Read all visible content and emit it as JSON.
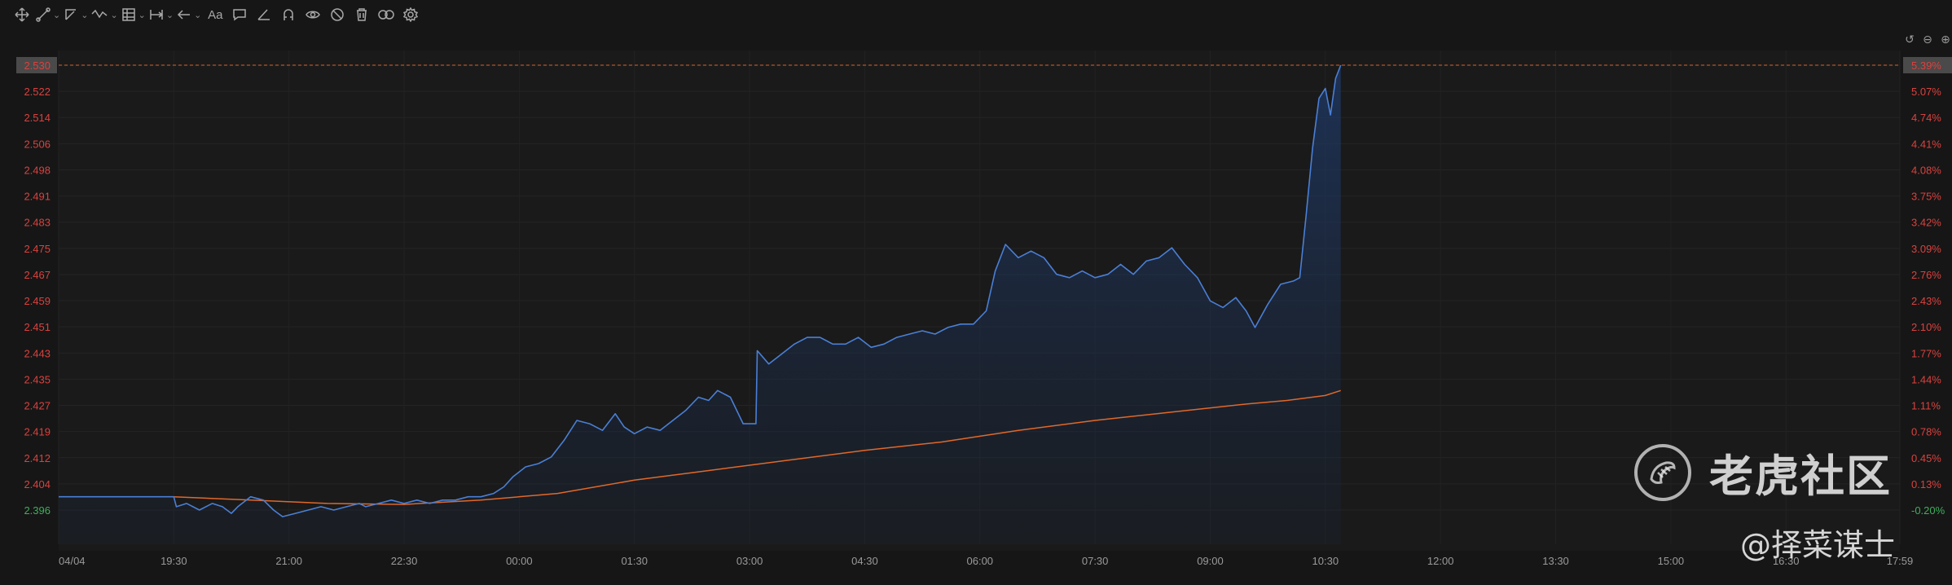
{
  "toolbar": {
    "tools": [
      {
        "name": "crosshair-tool",
        "icon": "move-icon",
        "caret": false
      },
      {
        "name": "line-tool",
        "icon": "line-icon",
        "caret": true
      },
      {
        "name": "ray-tool",
        "icon": "ray-icon",
        "caret": true
      },
      {
        "name": "wave-tool",
        "icon": "wave-icon",
        "caret": true
      },
      {
        "name": "measure-tool",
        "icon": "measure-icon",
        "caret": true
      },
      {
        "name": "range-tool",
        "icon": "range-icon",
        "caret": true
      },
      {
        "name": "arrow-tool",
        "icon": "arrow-left-icon",
        "caret": true
      },
      {
        "name": "text-tool",
        "icon": "text-icon",
        "caret": false
      },
      {
        "name": "note-tool",
        "icon": "comment-icon",
        "caret": false
      },
      {
        "name": "angle-tool",
        "icon": "angle-icon",
        "caret": false
      },
      {
        "name": "magnet-tool",
        "icon": "magnet-icon",
        "caret": false
      },
      {
        "name": "lock-tool",
        "icon": "eye-icon",
        "caret": false
      },
      {
        "name": "hide-tool",
        "icon": "hide-icon",
        "caret": false
      },
      {
        "name": "delete-tool",
        "icon": "trash-icon",
        "caret": false
      },
      {
        "name": "link-tool",
        "icon": "link-icon",
        "caret": false
      },
      {
        "name": "settings-tool",
        "icon": "gear-icon",
        "caret": false
      }
    ],
    "text_label": "Aa"
  },
  "corner_icons": [
    "undo-icon",
    "minus-icon",
    "plus-icon"
  ],
  "chart_data": {
    "type": "line",
    "title": "",
    "y_ticks": [
      "2.530",
      "2.522",
      "2.514",
      "2.506",
      "2.498",
      "2.491",
      "2.483",
      "2.475",
      "2.467",
      "2.459",
      "2.451",
      "2.443",
      "2.435",
      "2.427",
      "2.419",
      "2.412",
      "2.404",
      "2.396"
    ],
    "y_pct_ticks": [
      "5.39%",
      "5.07%",
      "4.74%",
      "4.41%",
      "4.08%",
      "3.75%",
      "3.42%",
      "3.09%",
      "2.76%",
      "2.43%",
      "2.10%",
      "1.77%",
      "1.44%",
      "1.11%",
      "0.78%",
      "0.45%",
      "0.13%",
      "-0.20%"
    ],
    "x_ticks": [
      "04/04",
      "19:30",
      "21:00",
      "22:30",
      "00:00",
      "01:30",
      "03:00",
      "04:30",
      "06:00",
      "07:30",
      "09:00",
      "10:30",
      "12:00",
      "13:30",
      "15:00",
      "16:30",
      "17:59"
    ],
    "ylim": [
      2.3935,
      2.5355
    ],
    "last_price": "2.530",
    "last_pct": "5.39%",
    "prev_close": 2.4009,
    "series": [
      {
        "type": "price",
        "color": "#4a7fd6",
        "points": [
          [
            "18:00",
            2.4
          ],
          [
            "19:30",
            2.4
          ],
          [
            "19:32",
            2.397
          ],
          [
            "19:40",
            2.398
          ],
          [
            "19:50",
            2.396
          ],
          [
            "20:00",
            2.398
          ],
          [
            "20:08",
            2.397
          ],
          [
            "20:15",
            2.395
          ],
          [
            "20:20",
            2.397
          ],
          [
            "20:30",
            2.4
          ],
          [
            "20:40",
            2.399
          ],
          [
            "20:48",
            2.396
          ],
          [
            "20:55",
            2.394
          ],
          [
            "21:05",
            2.395
          ],
          [
            "21:15",
            2.396
          ],
          [
            "21:25",
            2.397
          ],
          [
            "21:35",
            2.396
          ],
          [
            "21:45",
            2.397
          ],
          [
            "21:55",
            2.398
          ],
          [
            "22:00",
            2.397
          ],
          [
            "22:10",
            2.398
          ],
          [
            "22:20",
            2.399
          ],
          [
            "22:30",
            2.398
          ],
          [
            "22:40",
            2.399
          ],
          [
            "22:50",
            2.398
          ],
          [
            "23:00",
            2.399
          ],
          [
            "23:10",
            2.399
          ],
          [
            "23:20",
            2.4
          ],
          [
            "23:30",
            2.4
          ],
          [
            "23:40",
            2.401
          ],
          [
            "23:48",
            2.403
          ],
          [
            "23:55",
            2.406
          ],
          [
            "00:05",
            2.409
          ],
          [
            "00:15",
            2.41
          ],
          [
            "00:25",
            2.412
          ],
          [
            "00:35",
            2.417
          ],
          [
            "00:45",
            2.423
          ],
          [
            "00:55",
            2.422
          ],
          [
            "01:05",
            2.42
          ],
          [
            "01:15",
            2.425
          ],
          [
            "01:22",
            2.421
          ],
          [
            "01:30",
            2.419
          ],
          [
            "01:40",
            2.421
          ],
          [
            "01:50",
            2.42
          ],
          [
            "02:00",
            2.423
          ],
          [
            "02:10",
            2.426
          ],
          [
            "02:20",
            2.43
          ],
          [
            "02:28",
            2.429
          ],
          [
            "02:35",
            2.432
          ],
          [
            "02:45",
            2.43
          ],
          [
            "02:55",
            2.422
          ],
          [
            "03:00",
            2.422
          ],
          [
            "03:05",
            2.422
          ],
          [
            "03:06",
            2.444
          ],
          [
            "03:15",
            2.44
          ],
          [
            "03:25",
            2.443
          ],
          [
            "03:35",
            2.446
          ],
          [
            "03:45",
            2.448
          ],
          [
            "03:55",
            2.448
          ],
          [
            "04:05",
            2.446
          ],
          [
            "04:15",
            2.446
          ],
          [
            "04:25",
            2.448
          ],
          [
            "04:35",
            2.445
          ],
          [
            "04:45",
            2.446
          ],
          [
            "04:55",
            2.448
          ],
          [
            "05:05",
            2.449
          ],
          [
            "05:15",
            2.45
          ],
          [
            "05:25",
            2.449
          ],
          [
            "05:35",
            2.451
          ],
          [
            "05:45",
            2.452
          ],
          [
            "05:55",
            2.452
          ],
          [
            "06:05",
            2.456
          ],
          [
            "06:12",
            2.468
          ],
          [
            "06:20",
            2.476
          ],
          [
            "06:30",
            2.472
          ],
          [
            "06:40",
            2.474
          ],
          [
            "06:50",
            2.472
          ],
          [
            "07:00",
            2.467
          ],
          [
            "07:10",
            2.466
          ],
          [
            "07:20",
            2.468
          ],
          [
            "07:30",
            2.466
          ],
          [
            "07:40",
            2.467
          ],
          [
            "07:50",
            2.47
          ],
          [
            "08:00",
            2.467
          ],
          [
            "08:10",
            2.471
          ],
          [
            "08:20",
            2.472
          ],
          [
            "08:30",
            2.475
          ],
          [
            "08:40",
            2.47
          ],
          [
            "08:50",
            2.466
          ],
          [
            "09:00",
            2.459
          ],
          [
            "09:10",
            2.457
          ],
          [
            "09:20",
            2.46
          ],
          [
            "09:28",
            2.456
          ],
          [
            "09:35",
            2.451
          ],
          [
            "09:45",
            2.458
          ],
          [
            "09:55",
            2.464
          ],
          [
            "10:05",
            2.465
          ],
          [
            "10:10",
            2.466
          ],
          [
            "10:15",
            2.485
          ],
          [
            "10:20",
            2.505
          ],
          [
            "10:25",
            2.52
          ],
          [
            "10:30",
            2.523
          ],
          [
            "10:34",
            2.515
          ],
          [
            "10:38",
            2.526
          ],
          [
            "10:42",
            2.53
          ]
        ]
      },
      {
        "type": "average",
        "color": "#e0682a",
        "points": [
          [
            "19:30",
            2.4
          ],
          [
            "20:30",
            2.399
          ],
          [
            "21:30",
            2.398
          ],
          [
            "22:30",
            2.3977
          ],
          [
            "23:30",
            2.399
          ],
          [
            "00:30",
            2.401
          ],
          [
            "01:30",
            2.405
          ],
          [
            "02:30",
            2.408
          ],
          [
            "03:30",
            2.411
          ],
          [
            "04:30",
            2.414
          ],
          [
            "05:30",
            2.4165
          ],
          [
            "06:30",
            2.42
          ],
          [
            "07:30",
            2.423
          ],
          [
            "08:30",
            2.4255
          ],
          [
            "09:30",
            2.428
          ],
          [
            "10:00",
            2.429
          ],
          [
            "10:30",
            2.4305
          ],
          [
            "10:42",
            2.432
          ]
        ]
      }
    ],
    "grid": true
  },
  "watermark": {
    "brand": "老虎社区",
    "handle": "@择菜谋士"
  }
}
